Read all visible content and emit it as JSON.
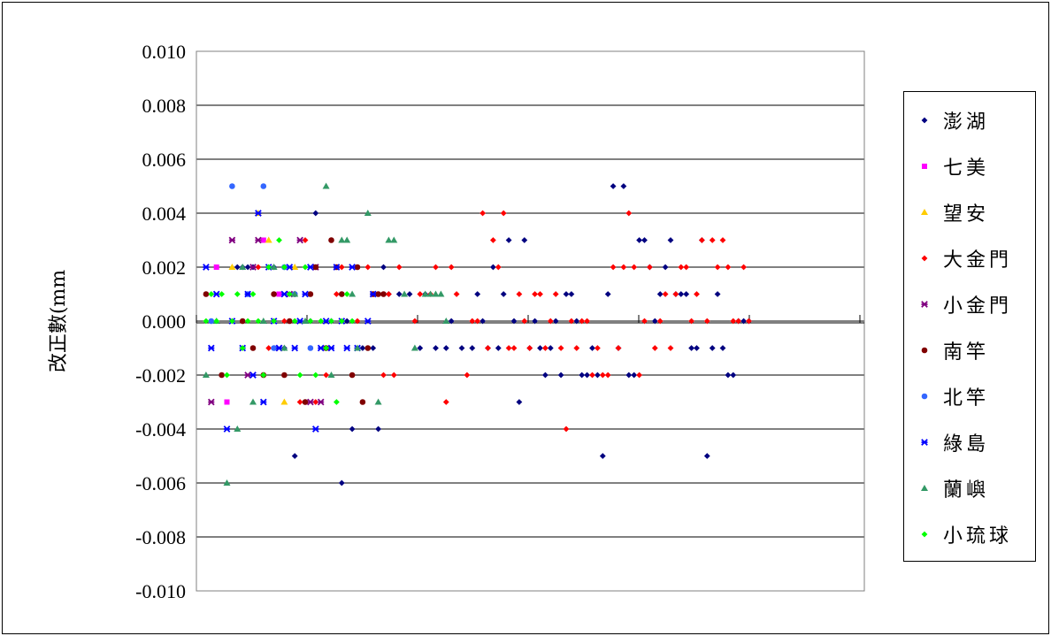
{
  "chart_data": {
    "type": "scatter",
    "ylabel": "改正數(mm",
    "ylim": [
      -0.01,
      0.01
    ],
    "yticks": [
      "0.010",
      "0.008",
      "0.006",
      "0.004",
      "0.002",
      "0.000",
      "-0.002",
      "-0.004",
      "-0.006",
      "-0.008",
      "-0.010"
    ],
    "grid": true,
    "legend_position": "right",
    "series": [
      {
        "name": "澎湖",
        "color": "#000080",
        "marker": "diamond",
        "points": [
          [
            7,
            0.002
          ],
          [
            8,
            0.002
          ],
          [
            9,
            0.002
          ],
          [
            10,
            0.002
          ],
          [
            14,
            0.002
          ],
          [
            16,
            -0.001
          ],
          [
            18,
            -0.005
          ],
          [
            20,
            -0.003
          ],
          [
            21,
            0
          ],
          [
            22,
            0.004
          ],
          [
            24,
            -0.001
          ],
          [
            25,
            0
          ],
          [
            27,
            -0.006
          ],
          [
            28,
            0
          ],
          [
            29,
            -0.004
          ],
          [
            31,
            -0.001
          ],
          [
            33,
            -0.001
          ],
          [
            34,
            -0.004
          ],
          [
            35,
            0.002
          ],
          [
            36,
            0.001
          ],
          [
            38,
            0.001
          ],
          [
            40,
            0.001
          ],
          [
            42,
            -0.001
          ],
          [
            43,
            0.001
          ],
          [
            45,
            -0.001
          ],
          [
            47,
            -0.001
          ],
          [
            48,
            0
          ],
          [
            50,
            -0.001
          ],
          [
            52,
            -0.001
          ],
          [
            53,
            0.001
          ],
          [
            54,
            0
          ],
          [
            55,
            -0.001
          ],
          [
            56,
            0.002
          ],
          [
            57,
            -0.001
          ],
          [
            58,
            0.001
          ],
          [
            59,
            0.003
          ],
          [
            60,
            0
          ],
          [
            61,
            -0.003
          ],
          [
            62,
            0.003
          ],
          [
            63,
            -0.001
          ],
          [
            64,
            0
          ],
          [
            65,
            -0.001
          ],
          [
            66,
            -0.002
          ],
          [
            67,
            -0.001
          ],
          [
            68,
            0
          ],
          [
            69,
            -0.002
          ],
          [
            70,
            0.001
          ],
          [
            71,
            0.001
          ],
          [
            72,
            0
          ],
          [
            73,
            -0.002
          ],
          [
            74,
            -0.002
          ],
          [
            75,
            -0.001
          ],
          [
            76,
            -0.002
          ],
          [
            77,
            -0.005
          ],
          [
            78,
            0.001
          ],
          [
            79,
            0.005
          ],
          [
            80,
            -0.001
          ],
          [
            81,
            0.005
          ],
          [
            82,
            -0.002
          ],
          [
            83,
            -0.002
          ],
          [
            84,
            0.003
          ],
          [
            85,
            0.003
          ],
          [
            86,
            0.002
          ],
          [
            87,
            0
          ],
          [
            88,
            0.001
          ],
          [
            89,
            0.002
          ],
          [
            90,
            0.003
          ],
          [
            91,
            0.001
          ],
          [
            92,
            0.001
          ],
          [
            93,
            0.001
          ],
          [
            94,
            -0.001
          ],
          [
            95,
            -0.001
          ],
          [
            96,
            0.003
          ],
          [
            97,
            -0.005
          ],
          [
            98,
            -0.001
          ],
          [
            99,
            0.001
          ],
          [
            100,
            -0.001
          ],
          [
            101,
            -0.002
          ],
          [
            102,
            -0.002
          ],
          [
            103,
            0
          ],
          [
            104,
            0
          ],
          [
            105,
            0
          ]
        ]
      },
      {
        "name": "七美",
        "color": "#FF00FF",
        "marker": "square",
        "points": [
          [
            3,
            0.002
          ],
          [
            5,
            -0.003
          ],
          [
            12,
            0.003
          ],
          [
            15,
            0.001
          ]
        ]
      },
      {
        "name": "望安",
        "color": "#FFCC00",
        "marker": "triangle",
        "points": [
          [
            6,
            0.002
          ],
          [
            11,
            0.004
          ],
          [
            13,
            0.003
          ],
          [
            16,
            -0.003
          ],
          [
            18,
            0.002
          ]
        ]
      },
      {
        "name": "大金門",
        "color": "#FF0000",
        "marker": "diamond",
        "points": [
          [
            11,
            0.002
          ],
          [
            13,
            -0.001
          ],
          [
            16,
            0
          ],
          [
            19,
            -0.003
          ],
          [
            20,
            0.003
          ],
          [
            22,
            -0.003
          ],
          [
            24,
            -0.002
          ],
          [
            26,
            0.001
          ],
          [
            27,
            0.002
          ],
          [
            30,
            0
          ],
          [
            32,
            0.002
          ],
          [
            33,
            0.001
          ],
          [
            35,
            -0.002
          ],
          [
            36,
            0.001
          ],
          [
            37,
            -0.002
          ],
          [
            38,
            0.002
          ],
          [
            41,
            0
          ],
          [
            42,
            0.001
          ],
          [
            44,
            0.001
          ],
          [
            45,
            0.002
          ],
          [
            47,
            -0.003
          ],
          [
            48,
            0.002
          ],
          [
            49,
            0.001
          ],
          [
            51,
            -0.002
          ],
          [
            52,
            0
          ],
          [
            53,
            0
          ],
          [
            54,
            0.004
          ],
          [
            55,
            -0.001
          ],
          [
            56,
            0.003
          ],
          [
            57,
            0.002
          ],
          [
            58,
            0.004
          ],
          [
            59,
            -0.001
          ],
          [
            60,
            -0.001
          ],
          [
            61,
            0.001
          ],
          [
            62,
            0
          ],
          [
            63,
            -0.001
          ],
          [
            64,
            0.001
          ],
          [
            65,
            0.001
          ],
          [
            66,
            -0.001
          ],
          [
            67,
            0
          ],
          [
            68,
            0.001
          ],
          [
            69,
            -0.001
          ],
          [
            70,
            -0.004
          ],
          [
            71,
            0
          ],
          [
            72,
            -0.001
          ],
          [
            73,
            0
          ],
          [
            74,
            0
          ],
          [
            75,
            -0.002
          ],
          [
            76,
            -0.001
          ],
          [
            77,
            -0.002
          ],
          [
            78,
            -0.002
          ],
          [
            79,
            0.002
          ],
          [
            80,
            -0.001
          ],
          [
            81,
            0.002
          ],
          [
            82,
            0.004
          ],
          [
            83,
            0.002
          ],
          [
            84,
            -0.002
          ],
          [
            85,
            0
          ],
          [
            86,
            0.002
          ],
          [
            87,
            -0.001
          ],
          [
            88,
            0
          ],
          [
            89,
            0.001
          ],
          [
            90,
            -0.001
          ],
          [
            91,
            0.001
          ],
          [
            92,
            0.002
          ],
          [
            93,
            0.002
          ],
          [
            94,
            0
          ],
          [
            95,
            0.001
          ],
          [
            96,
            0.003
          ],
          [
            97,
            0
          ],
          [
            98,
            0.003
          ],
          [
            99,
            0.002
          ],
          [
            100,
            0.003
          ],
          [
            101,
            0.002
          ],
          [
            102,
            0
          ],
          [
            103,
            0
          ],
          [
            104,
            0.002
          ],
          [
            105,
            0
          ]
        ]
      },
      {
        "name": "小金門",
        "color": "#800080",
        "marker": "x",
        "points": [
          [
            2,
            -0.003
          ],
          [
            6,
            0.003
          ],
          [
            9,
            -0.002
          ],
          [
            10,
            0.002
          ],
          [
            11,
            0.003
          ],
          [
            15,
            -0.001
          ],
          [
            17,
            0.001
          ],
          [
            19,
            0.003
          ],
          [
            21,
            -0.003
          ],
          [
            22,
            0.002
          ],
          [
            23,
            -0.003
          ]
        ]
      },
      {
        "name": "南竿",
        "color": "#800000",
        "marker": "circle",
        "points": [
          [
            1,
            0.001
          ],
          [
            4,
            -0.002
          ],
          [
            8,
            0
          ],
          [
            10,
            -0.001
          ],
          [
            12,
            -0.002
          ],
          [
            14,
            0.001
          ],
          [
            16,
            -0.002
          ],
          [
            17,
            0
          ],
          [
            18,
            0.001
          ],
          [
            20,
            -0.003
          ],
          [
            21,
            0.001
          ],
          [
            22,
            0.002
          ],
          [
            24,
            -0.001
          ],
          [
            25,
            0.003
          ],
          [
            26,
            0.002
          ],
          [
            27,
            0.001
          ],
          [
            29,
            -0.002
          ],
          [
            30,
            0.002
          ],
          [
            31,
            -0.003
          ],
          [
            32,
            -0.001
          ],
          [
            33,
            0.001
          ],
          [
            34,
            0.001
          ],
          [
            35,
            0.001
          ]
        ]
      },
      {
        "name": "北竿",
        "color": "#3366FF",
        "marker": "circle",
        "points": [
          [
            2,
            0
          ],
          [
            6,
            0.005
          ],
          [
            9,
            0.001
          ],
          [
            12,
            0.005
          ],
          [
            14,
            -0.001
          ],
          [
            16,
            0.002
          ],
          [
            18,
            0.001
          ],
          [
            21,
            -0.001
          ]
        ]
      },
      {
        "name": "綠島",
        "color": "#0000FF",
        "marker": "x",
        "points": [
          [
            1,
            0.002
          ],
          [
            2,
            -0.001
          ],
          [
            3,
            0.001
          ],
          [
            5,
            -0.004
          ],
          [
            6,
            0
          ],
          [
            8,
            -0.001
          ],
          [
            9,
            0.001
          ],
          [
            10,
            -0.002
          ],
          [
            11,
            0.004
          ],
          [
            12,
            -0.003
          ],
          [
            13,
            0.002
          ],
          [
            14,
            0
          ],
          [
            15,
            -0.001
          ],
          [
            16,
            0.001
          ],
          [
            17,
            0.002
          ],
          [
            18,
            -0.001
          ],
          [
            19,
            0
          ],
          [
            20,
            0.001
          ],
          [
            21,
            0.002
          ],
          [
            22,
            -0.004
          ],
          [
            23,
            -0.001
          ],
          [
            24,
            0
          ],
          [
            25,
            -0.001
          ],
          [
            26,
            0.002
          ],
          [
            27,
            0
          ],
          [
            28,
            -0.001
          ],
          [
            29,
            0.002
          ],
          [
            30,
            -0.001
          ],
          [
            32,
            0
          ],
          [
            33,
            0.001
          ]
        ]
      },
      {
        "name": "蘭嶼",
        "color": "#339966",
        "marker": "triangle",
        "points": [
          [
            1,
            -0.002
          ],
          [
            3,
            0
          ],
          [
            5,
            -0.006
          ],
          [
            7,
            -0.004
          ],
          [
            8,
            0.002
          ],
          [
            10,
            -0.003
          ],
          [
            12,
            0
          ],
          [
            14,
            0.002
          ],
          [
            16,
            -0.001
          ],
          [
            18,
            0.001
          ],
          [
            20,
            0
          ],
          [
            24,
            0.005
          ],
          [
            25,
            -0.002
          ],
          [
            27,
            0.003
          ],
          [
            28,
            0.003
          ],
          [
            29,
            0.001
          ],
          [
            30,
            -0.001
          ],
          [
            32,
            0.004
          ],
          [
            34,
            -0.003
          ],
          [
            36,
            0.003
          ],
          [
            37,
            0.003
          ],
          [
            39,
            0.001
          ],
          [
            41,
            -0.001
          ],
          [
            43,
            0.001
          ],
          [
            44,
            0.001
          ],
          [
            45,
            0.001
          ],
          [
            46,
            0.001
          ],
          [
            47,
            0
          ]
        ]
      },
      {
        "name": "小琉球",
        "color": "#00FF00",
        "marker": "diamond",
        "points": [
          [
            1,
            0
          ],
          [
            2,
            0.001
          ],
          [
            3,
            0
          ],
          [
            4,
            0.001
          ],
          [
            5,
            -0.002
          ],
          [
            6,
            0
          ],
          [
            7,
            0.001
          ],
          [
            8,
            -0.001
          ],
          [
            9,
            0
          ],
          [
            10,
            0.001
          ],
          [
            11,
            0
          ],
          [
            12,
            -0.002
          ],
          [
            13,
            0.002
          ],
          [
            14,
            0
          ],
          [
            15,
            0.003
          ],
          [
            16,
            0.002
          ],
          [
            17,
            0.001
          ],
          [
            18,
            0
          ],
          [
            19,
            -0.002
          ],
          [
            20,
            0.002
          ],
          [
            21,
            0
          ],
          [
            22,
            -0.002
          ],
          [
            23,
            0
          ],
          [
            24,
            -0.001
          ],
          [
            25,
            0
          ],
          [
            26,
            -0.003
          ],
          [
            27,
            0
          ],
          [
            28,
            0.001
          ],
          [
            29,
            0
          ]
        ]
      }
    ]
  }
}
